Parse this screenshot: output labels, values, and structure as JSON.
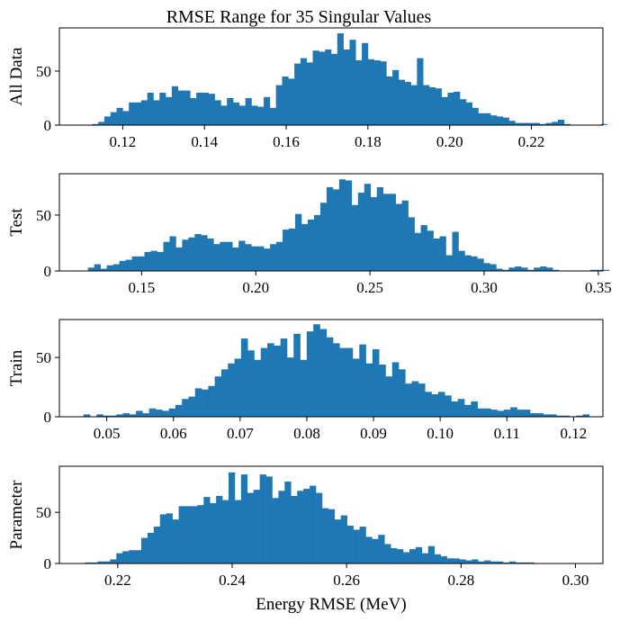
{
  "chart_data": [
    {
      "type": "bar",
      "title": "RMSE Range for 35 Singular Values",
      "ylabel": "All Data",
      "xlabel": "",
      "xlim": [
        0.1045,
        0.2375
      ],
      "ylim": [
        0,
        90
      ],
      "xticks": [
        0.12,
        0.14,
        0.16,
        0.18,
        0.2,
        0.22
      ],
      "xtick_labels": [
        "0.12",
        "0.14",
        "0.16",
        "0.18",
        "0.20",
        "0.22"
      ],
      "yticks": [
        0,
        50
      ],
      "ytick_labels": [
        "0",
        "50"
      ],
      "color": "#1f77b4",
      "bins": {
        "start": 0.1125,
        "width": 0.0015
      },
      "values": [
        1,
        3,
        8,
        12,
        16,
        13,
        21,
        21,
        23,
        30,
        23,
        30,
        26,
        36,
        32,
        32,
        25,
        30,
        30,
        29,
        23,
        18,
        25,
        21,
        18,
        25,
        18,
        17,
        26,
        16,
        37,
        45,
        43,
        57,
        62,
        58,
        69,
        68,
        70,
        66,
        85,
        70,
        79,
        60,
        76,
        61,
        60,
        59,
        45,
        51,
        42,
        40,
        37,
        62,
        37,
        35,
        34,
        26,
        30,
        31,
        24,
        21,
        16,
        11,
        11,
        9,
        8,
        7,
        4,
        2,
        2,
        2,
        2,
        1,
        2,
        3,
        5,
        1,
        0,
        0,
        0,
        0,
        0,
        1,
        0,
        0,
        0,
        0,
        1
      ]
    },
    {
      "type": "bar",
      "title": "",
      "ylabel": "Test",
      "xlabel": "",
      "xlim": [
        0.114,
        0.352
      ],
      "ylim": [
        0,
        87
      ],
      "xticks": [
        0.15,
        0.2,
        0.25,
        0.3,
        0.35
      ],
      "xtick_labels": [
        "0.15",
        "0.20",
        "0.25",
        "0.30",
        "0.35"
      ],
      "yticks": [
        0,
        50
      ],
      "ytick_labels": [
        "0",
        "50"
      ],
      "color": "#1f77b4",
      "bins": {
        "start": 0.1265,
        "width": 0.00275
      },
      "values": [
        3,
        6,
        2,
        5,
        6,
        9,
        10,
        13,
        13,
        17,
        18,
        17,
        26,
        31,
        21,
        28,
        30,
        33,
        32,
        29,
        24,
        26,
        26,
        21,
        27,
        24,
        22,
        22,
        20,
        24,
        26,
        37,
        38,
        51,
        42,
        46,
        50,
        61,
        75,
        73,
        82,
        81,
        59,
        70,
        78,
        66,
        75,
        69,
        69,
        60,
        63,
        48,
        34,
        41,
        36,
        29,
        31,
        14,
        35,
        18,
        14,
        13,
        11,
        7,
        6,
        2,
        1,
        3,
        4,
        3,
        1,
        3,
        4,
        3,
        1,
        0,
        0,
        0,
        0,
        0,
        1,
        1,
        1
      ]
    },
    {
      "type": "bar",
      "title": "",
      "ylabel": "Train",
      "xlabel": "",
      "xlim": [
        0.0429,
        0.1244
      ],
      "ylim": [
        0,
        82
      ],
      "xticks": [
        0.05,
        0.06,
        0.07,
        0.08,
        0.09,
        0.1,
        0.11,
        0.12
      ],
      "xtick_labels": [
        "0.05",
        "0.06",
        "0.07",
        "0.08",
        "0.09",
        "0.10",
        "0.11",
        "0.12"
      ],
      "yticks": [
        0,
        50
      ],
      "ytick_labels": [
        "0",
        "50"
      ],
      "color": "#1f77b4",
      "bins": {
        "start": 0.0465,
        "width": 0.000985
      },
      "values": [
        2,
        0,
        2,
        1,
        1,
        2,
        3,
        2,
        5,
        3,
        7,
        6,
        5,
        7,
        10,
        15,
        17,
        24,
        23,
        26,
        34,
        40,
        45,
        49,
        66,
        56,
        48,
        58,
        62,
        60,
        66,
        50,
        70,
        48,
        72,
        78,
        74,
        67,
        62,
        58,
        58,
        49,
        61,
        45,
        57,
        44,
        34,
        46,
        40,
        28,
        30,
        28,
        21,
        19,
        21,
        18,
        13,
        15,
        10,
        13,
        7,
        7,
        6,
        5,
        6,
        8,
        6,
        6,
        3,
        3,
        2,
        2,
        1,
        1,
        0,
        1,
        2,
        0
      ]
    },
    {
      "type": "bar",
      "title": "",
      "ylabel": "Parameter",
      "xlabel": "Energy RMSE (MeV)",
      "xlim": [
        0.2098,
        0.3048
      ],
      "ylim": [
        0,
        95
      ],
      "xticks": [
        0.22,
        0.24,
        0.26,
        0.28,
        0.3
      ],
      "xtick_labels": [
        "0.22",
        "0.24",
        "0.26",
        "0.28",
        "0.30"
      ],
      "yticks": [
        0,
        50
      ],
      "ytick_labels": [
        "0",
        "50"
      ],
      "color": "#1f77b4",
      "bins": {
        "start": 0.2143,
        "width": 0.00109
      },
      "values": [
        1,
        1,
        2,
        2,
        4,
        10,
        12,
        13,
        13,
        25,
        30,
        36,
        48,
        49,
        43,
        56,
        56,
        56,
        57,
        65,
        59,
        66,
        62,
        89,
        62,
        87,
        69,
        72,
        87,
        85,
        64,
        71,
        80,
        66,
        71,
        73,
        76,
        69,
        54,
        53,
        43,
        47,
        37,
        33,
        36,
        26,
        24,
        28,
        19,
        15,
        14,
        11,
        14,
        16,
        10,
        17,
        9,
        7,
        5,
        5,
        4,
        3,
        4,
        2,
        3,
        2,
        2,
        1,
        2,
        1,
        1,
        1,
        0,
        0,
        0,
        0,
        0,
        0,
        0,
        0,
        0,
        0,
        0,
        0,
        0,
        0,
        0,
        1
      ]
    }
  ]
}
